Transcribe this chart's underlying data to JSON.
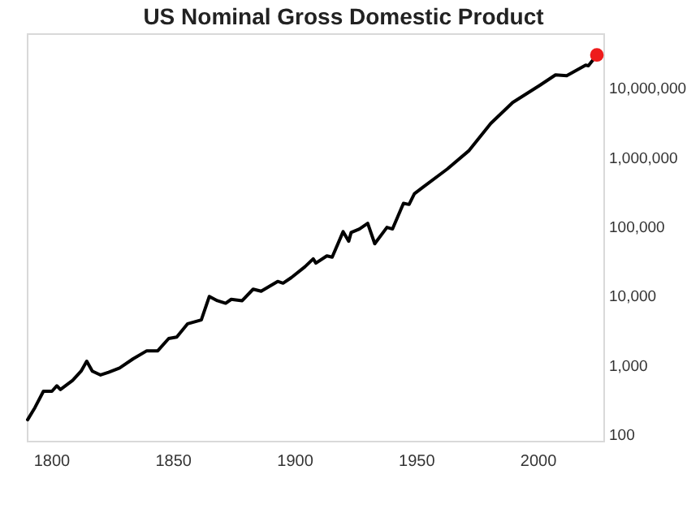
{
  "chart_data": {
    "type": "line",
    "title": "US Nominal Gross Domestic Product",
    "log": "y",
    "grid": false,
    "xlim": [
      1790,
      2027
    ],
    "xticks": [
      1800,
      1850,
      1900,
      1950,
      2000
    ],
    "ylim": [
      80,
      60000000
    ],
    "yticks": [
      100,
      {
        "value": 1000,
        "label": "1,000"
      },
      {
        "value": 10000,
        "label": "10,000"
      },
      {
        "value": 100000,
        "label": "100,000"
      },
      {
        "value": 1000000,
        "label": "1,000,000"
      },
      {
        "value": 10000000,
        "label": "10,000,000"
      }
    ],
    "series": [
      {
        "color": "#000000",
        "marker": "none",
        "line_style": "solid",
        "x": [
          1790,
          1793,
          1796.5,
          1800,
          1802,
          1803.5,
          1808.5,
          1812,
          1814.3,
          1816.6,
          1820,
          1823.3,
          1827.8,
          1833.4,
          1839,
          1843.5,
          1848,
          1851.3,
          1855.8,
          1861.4,
          1864.7,
          1868,
          1871.4,
          1873.7,
          1878.2,
          1882.7,
          1886,
          1892.8,
          1895,
          1898.4,
          1904,
          1907.4,
          1908.5,
          1913,
          1915.2,
          1919.7,
          1922,
          1923,
          1926.4,
          1929.8,
          1932.7,
          1937.7,
          1940,
          1944.5,
          1946.8,
          1949,
          1952.4,
          1962.5,
          1971.5,
          1980.4,
          1989.4,
          2000.6,
          2007,
          2011.6,
          2019.4,
          2020.5,
          2024
        ],
        "values": [
          165,
          247,
          425,
          425,
          510,
          450,
          610,
          830,
          1150,
          830,
          730,
          800,
          920,
          1250,
          1630,
          1630,
          2450,
          2570,
          4000,
          4550,
          9900,
          8600,
          7900,
          9000,
          8600,
          12600,
          11800,
          16300,
          15400,
          18500,
          26500,
          34500,
          30000,
          38000,
          36500,
          85000,
          62000,
          83000,
          93000,
          112000,
          57000,
          98000,
          93000,
          218000,
          210000,
          300000,
          370000,
          680000,
          1260000,
          3100000,
          6200000,
          11000000,
          15500000,
          15100000,
          21400000,
          21000000,
          30000000
        ]
      },
      {
        "type": "scatter",
        "color": "#ee1c1c",
        "marker": "circle",
        "x": [
          2024
        ],
        "values": [
          30000000
        ]
      }
    ]
  }
}
